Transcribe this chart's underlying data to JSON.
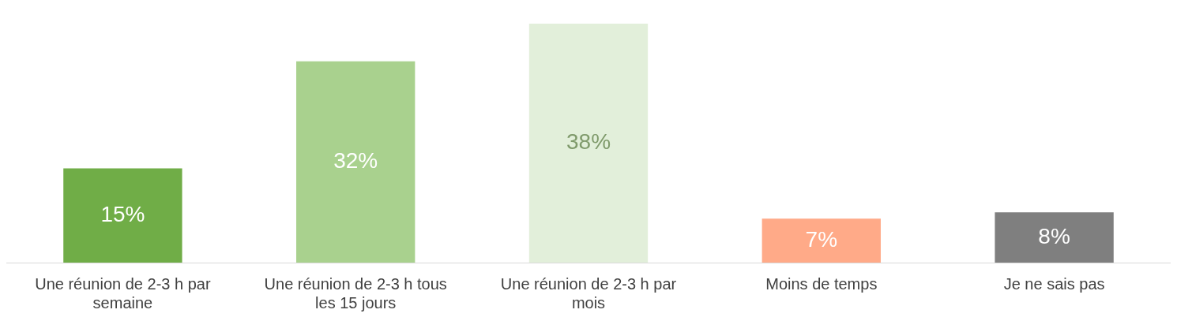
{
  "chart_data": {
    "type": "bar",
    "categories": [
      "Une réunion de 2-3 h par semaine",
      "Une réunion de 2-3 h tous les 15 jours",
      "Une réunion de 2-3 h par mois",
      "Moins de temps",
      "Je ne sais pas"
    ],
    "values": [
      15,
      32,
      38,
      7,
      8
    ],
    "colors": [
      "#70ad47",
      "#a9d18e",
      "#e2efda",
      "#ffaa88",
      "#7f7f7f"
    ],
    "value_labels": [
      "15%",
      "32%",
      "38%",
      "7%",
      "8%"
    ],
    "grid": false,
    "legend": false
  }
}
